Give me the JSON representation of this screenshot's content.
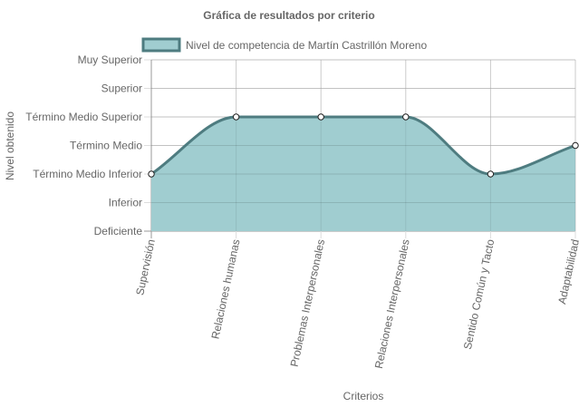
{
  "chart_data": {
    "type": "area",
    "title": "Gráfica de resultados por criterio",
    "xlabel": "Criterios",
    "ylabel": "Nivel obtenido",
    "y_levels": [
      "Deficiente",
      "Inferior",
      "Término Medio Inferior",
      "Término Medio",
      "Término Medio Superior",
      "Superior",
      "Muy Superior"
    ],
    "categories": [
      "Supervisión",
      "Relaciones humanas",
      "Problemas Interpersonales",
      "Relaciones Interpersonales",
      "Sentido Común y Tacto",
      "Adaptabilidad"
    ],
    "series": [
      {
        "name": "Nivel de competencia de Martín Castrillón Moreno",
        "values": [
          "Término Medio Inferior",
          "Término Medio Superior",
          "Término Medio Superior",
          "Término Medio Superior",
          "Término Medio Inferior",
          "Término Medio"
        ],
        "fill_color": "#a0cdd0",
        "line_color": "#4e7c80"
      }
    ],
    "grid": true,
    "legend_position": "top"
  }
}
